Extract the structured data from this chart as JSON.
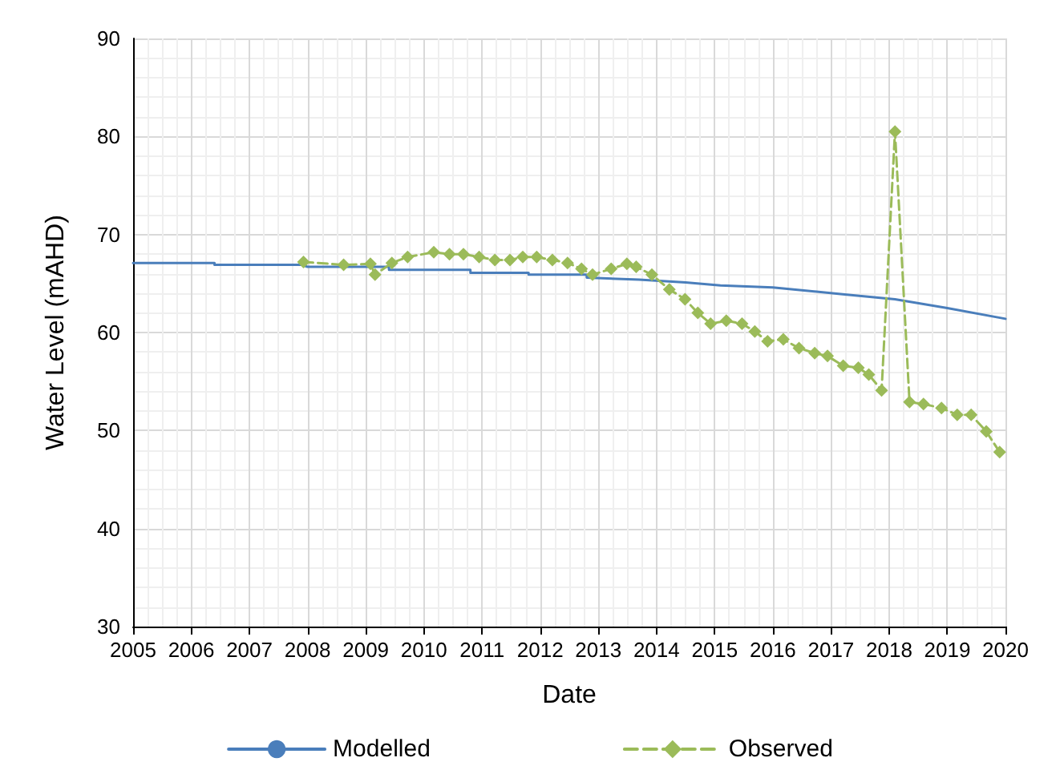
{
  "chart_data": {
    "type": "line",
    "xlabel": "Date",
    "ylabel": "Water Level (mAHD)",
    "xlim": [
      2005,
      2020
    ],
    "xticks": [
      2005,
      2006,
      2007,
      2008,
      2009,
      2010,
      2011,
      2012,
      2013,
      2014,
      2015,
      2016,
      2017,
      2018,
      2019,
      2020
    ],
    "ylim": [
      30,
      90
    ],
    "yticks": [
      30,
      40,
      50,
      60,
      70,
      80,
      90
    ],
    "grid": true,
    "legend": "bottom",
    "series": [
      {
        "name": "Modelled",
        "color": "#4a7ebb",
        "marker": "none",
        "line_style": "solid",
        "x": [
          2005,
          2006.4,
          2006.4,
          2007.9,
          2008.0,
          2009.4,
          2009.4,
          2010.8,
          2010.8,
          2011.8,
          2011.8,
          2012.8,
          2012.8,
          2013.7,
          2014.5,
          2015.1,
          2016.0,
          2017.2,
          2018.1,
          2019.0,
          2020.0
        ],
        "values": [
          67.1,
          67.1,
          66.9,
          66.9,
          66.7,
          66.7,
          66.4,
          66.4,
          66.1,
          66.1,
          65.9,
          65.9,
          65.6,
          65.4,
          65.1,
          64.8,
          64.6,
          63.9,
          63.4,
          62.5,
          61.4
        ]
      },
      {
        "name": "Observed",
        "color": "#9bbb59",
        "marker": "diamond",
        "line_style": "dashed",
        "x": [
          2007.93,
          2008.62,
          2009.08,
          2009.16,
          2009.45,
          2009.72,
          2010.17,
          2010.44,
          2010.68,
          2010.95,
          2011.22,
          2011.48,
          2011.7,
          2011.94,
          2012.21,
          2012.47,
          2012.71,
          2012.9,
          2013.22,
          2013.49,
          2013.65,
          2013.92,
          2014.22,
          2014.49,
          2014.71,
          2014.93,
          2015.2,
          2015.47,
          2015.69,
          2015.91,
          2016.18,
          2016.45,
          2016.72,
          2016.94,
          2017.21,
          2017.47,
          2017.65,
          2017.87,
          2018.1,
          2018.35,
          2018.59,
          2018.9,
          2019.17,
          2019.41,
          2019.67,
          2019.9
        ],
        "values": [
          67.2,
          66.9,
          67.0,
          65.9,
          67.1,
          67.7,
          68.2,
          68.0,
          68.0,
          67.7,
          67.4,
          67.4,
          67.7,
          67.7,
          67.4,
          67.1,
          66.5,
          65.9,
          66.5,
          67.0,
          66.7,
          65.9,
          64.4,
          63.4,
          62.0,
          60.9,
          61.2,
          60.9,
          60.1,
          59.1,
          59.3,
          58.4,
          57.9,
          57.6,
          56.6,
          56.4,
          55.7,
          54.1,
          80.5,
          52.9,
          52.7,
          52.3,
          51.6,
          51.6,
          49.9,
          47.8
        ]
      }
    ]
  }
}
